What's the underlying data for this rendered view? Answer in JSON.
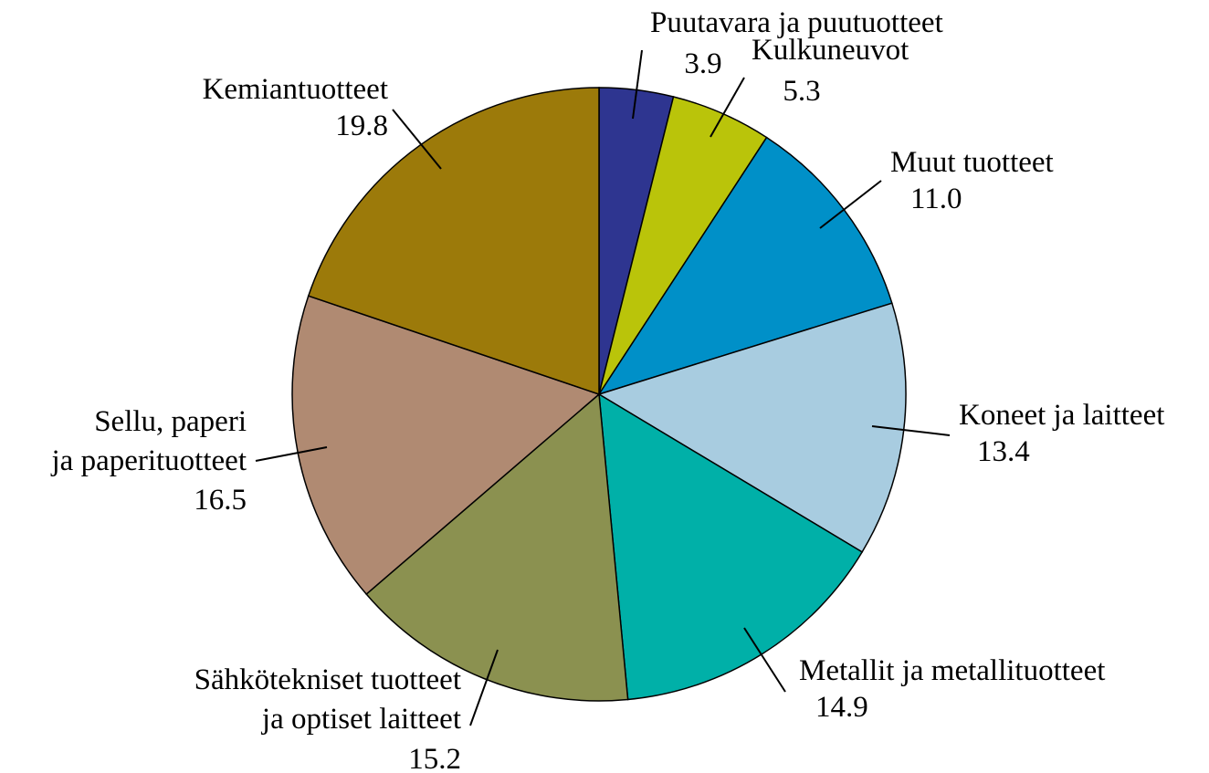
{
  "chart_data": {
    "type": "pie",
    "categories": [
      "Puutavara ja puutuotteet",
      "Kulkuneuvot",
      "Muut tuotteet",
      "Koneet ja laitteet",
      "Metallit ja metallituotteet",
      "Sähkötekniset tuotteet\nja optiset laitteet",
      "Sellu, paperi\nja paperituotteet",
      "Kemiantuotteet"
    ],
    "values": [
      3.9,
      5.3,
      11.0,
      13.4,
      14.9,
      15.2,
      16.5,
      19.8
    ],
    "value_labels": [
      "3.9",
      "5.3",
      "11.0",
      "13.4",
      "14.9",
      "15.2",
      "16.5",
      "19.8"
    ],
    "colors": [
      "#2e3590",
      "#bac40a",
      "#0090c8",
      "#a8cce0",
      "#00b0a8",
      "#8b9150",
      "#b08a72",
      "#9c7a0a"
    ]
  }
}
